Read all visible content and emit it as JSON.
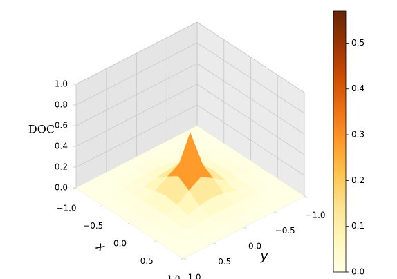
{
  "chart_data": {
    "type": "surface3d",
    "zlabel": "DOC",
    "xlabel": "x",
    "ylabel": "y",
    "x": [
      -1.0,
      -0.8,
      -0.6,
      -0.4,
      -0.2,
      0.0,
      0.2,
      0.4,
      0.6,
      0.8,
      1.0
    ],
    "y": [
      -1.0,
      -0.8,
      -0.6,
      -0.4,
      -0.2,
      0.0,
      0.2,
      0.4,
      0.6,
      0.8,
      1.0
    ],
    "z": [
      [
        0,
        0,
        0,
        0,
        0,
        0,
        0,
        0,
        0,
        0,
        0
      ],
      [
        0,
        0,
        0,
        0,
        0.01,
        0.01,
        0.01,
        0,
        0,
        0,
        0
      ],
      [
        0,
        0,
        0.01,
        0.02,
        0.02,
        0.03,
        0.02,
        0.02,
        0.01,
        0,
        0
      ],
      [
        0,
        0,
        0.02,
        0.03,
        0.06,
        0.08,
        0.06,
        0.03,
        0.02,
        0,
        0
      ],
      [
        0,
        0.01,
        0.02,
        0.06,
        0.14,
        0.21,
        0.14,
        0.06,
        0.02,
        0.01,
        0
      ],
      [
        0,
        0.01,
        0.03,
        0.08,
        0.21,
        0.57,
        0.21,
        0.08,
        0.03,
        0.01,
        0
      ],
      [
        0,
        0.01,
        0.02,
        0.06,
        0.14,
        0.21,
        0.14,
        0.06,
        0.02,
        0.01,
        0
      ],
      [
        0,
        0,
        0.02,
        0.03,
        0.06,
        0.08,
        0.06,
        0.03,
        0.02,
        0,
        0
      ],
      [
        0,
        0,
        0.01,
        0.02,
        0.02,
        0.03,
        0.02,
        0.02,
        0.01,
        0,
        0
      ],
      [
        0,
        0,
        0,
        0,
        0.01,
        0.01,
        0.01,
        0,
        0,
        0,
        0
      ],
      [
        0,
        0,
        0,
        0,
        0,
        0,
        0,
        0,
        0,
        0,
        0
      ]
    ],
    "xlim": [
      -1,
      1
    ],
    "ylim": [
      -1,
      1
    ],
    "zlim": [
      0,
      1
    ],
    "xticks": [
      {
        "value": -1,
        "label": "−1.0"
      },
      {
        "value": -0.5,
        "label": "−0.5"
      },
      {
        "value": 0,
        "label": "0.0"
      },
      0.5,
      {
        "value": 1,
        "label": "1.0"
      }
    ],
    "yticks": [
      {
        "value": -1,
        "label": "−1.0"
      },
      {
        "value": -0.5,
        "label": "−0.5"
      },
      {
        "value": 0,
        "label": "0.0"
      },
      0.5,
      {
        "value": 1,
        "label": "1.0"
      }
    ],
    "zticks": [
      {
        "value": 0,
        "label": "0.0"
      },
      0.2,
      0.4,
      0.6,
      0.8,
      {
        "value": 1,
        "label": "1.0"
      }
    ],
    "clim": [
      0,
      0.57
    ],
    "colorbar_ticks": [
      {
        "value": 0,
        "label": "0.0"
      },
      0.1,
      0.2,
      0.3,
      0.4,
      0.5
    ],
    "colormap": [
      "#ffffe5",
      "#fff7bc",
      "#fee391",
      "#fec44f",
      "#fe9929",
      "#ec7014",
      "#cc4c02",
      "#993404",
      "#662506"
    ],
    "grid": true
  }
}
